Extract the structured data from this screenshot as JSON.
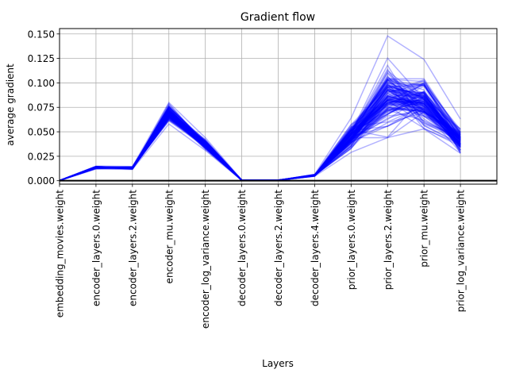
{
  "chart_data": {
    "type": "line",
    "title": "Gradient flow",
    "xlabel": "Layers",
    "ylabel": "average gradient",
    "categories": [
      "embedding_movies.weight",
      "encoder_layers.0.weight",
      "encoder_layers.2.weight",
      "encoder_mu.weight",
      "encoder_log_variance.weight",
      "decoder_layers.0.weight",
      "decoder_layers.2.weight",
      "decoder_layers.4.weight",
      "prior_layers.0.weight",
      "prior_layers.2.weight",
      "prior_mu.weight",
      "prior_log_variance.weight"
    ],
    "xlim": [
      0,
      12
    ],
    "ylim": [
      -0.0035,
      0.1555
    ],
    "y_ticks": [
      "0.000",
      "0.025",
      "0.050",
      "0.075",
      "0.100",
      "0.125",
      "0.150"
    ],
    "grid": true,
    "line_color": "#0000ff",
    "zero_line_color": "#000000",
    "series_ranges": {
      "mean": [
        0.0002,
        0.0135,
        0.013,
        0.07,
        0.037,
        0.0005,
        0.0005,
        0.0055,
        0.045,
        0.088,
        0.08,
        0.04
      ],
      "min": [
        0.0001,
        0.012,
        0.0115,
        0.058,
        0.031,
        0.0003,
        0.0003,
        0.0045,
        0.029,
        0.044,
        0.053,
        0.028
      ],
      "max": [
        0.0004,
        0.015,
        0.0145,
        0.08,
        0.044,
        0.0008,
        0.0008,
        0.0065,
        0.064,
        0.148,
        0.124,
        0.063
      ]
    },
    "series_count": 120
  }
}
